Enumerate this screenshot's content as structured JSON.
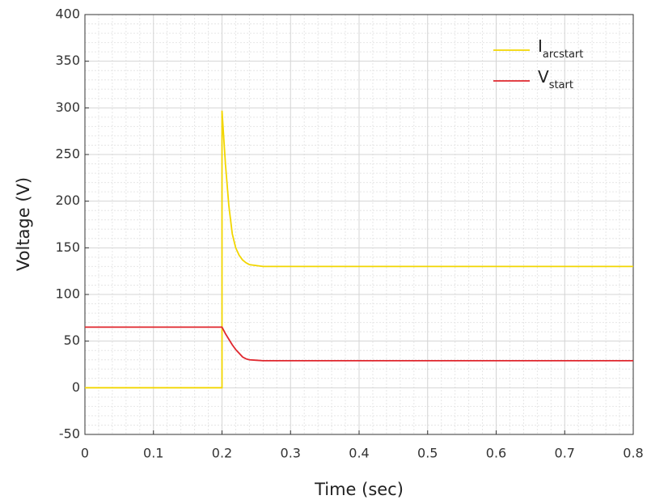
{
  "chart_data": {
    "type": "line",
    "xlabel": "Time (sec)",
    "ylabel": "Voltage (V)",
    "x": [
      0,
      0.2,
      0.2,
      0.205,
      0.21,
      0.215,
      0.22,
      0.225,
      0.23,
      0.235,
      0.24,
      0.25,
      0.26,
      0.3,
      0.8
    ],
    "series": [
      {
        "name": "I",
        "name_sub": "arcstart",
        "color": "#f2d600",
        "values": [
          0,
          0,
          297,
          240,
          195,
          165,
          150,
          142,
          137,
          134,
          132,
          131,
          130,
          130,
          130
        ]
      },
      {
        "name": "V",
        "name_sub": "start",
        "color": "#e0272e",
        "values": [
          65,
          65,
          65,
          58,
          52,
          46,
          41,
          37,
          33,
          31,
          30,
          29.5,
          29,
          29,
          29
        ]
      }
    ],
    "xlim": [
      0,
      0.8
    ],
    "xticks": [
      0,
      0.1,
      0.2,
      0.3,
      0.4,
      0.5,
      0.6,
      0.7,
      0.8
    ],
    "ylim": [
      -50,
      400
    ],
    "yticks": [
      -50,
      0,
      50,
      100,
      150,
      200,
      250,
      300,
      350,
      400
    ],
    "grid": true,
    "minor_grid": true,
    "legend": "upper right"
  }
}
